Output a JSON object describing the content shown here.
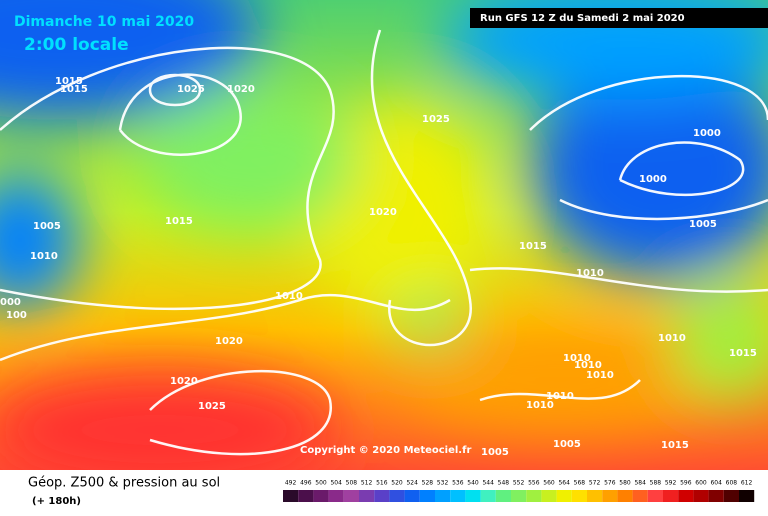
{
  "header": {
    "date": "Dimanche 10 mai 2020",
    "time": "2:00 locale",
    "run": "Run GFS 12 Z du Samedi 2 mai 2020"
  },
  "isobar_labels": [
    "1015",
    "1015",
    "1025",
    "1020",
    "1025",
    "1000",
    "1000",
    "1015",
    "1005",
    "1020",
    "1005",
    "1010",
    "1015",
    "1010",
    "1010",
    "000",
    "100",
    "1020",
    "1010",
    "1015",
    "1010",
    "1010",
    "1010",
    "1020",
    "1025",
    "1010",
    "1010",
    "1005",
    "1015",
    "1005"
  ],
  "copyright": "Copyright © 2020 Meteociel.fr",
  "footer": {
    "title": "Géop. Z500 & pression au sol",
    "lead": "(+ 180h)"
  },
  "legend": {
    "values": [
      492,
      496,
      500,
      504,
      508,
      512,
      516,
      520,
      524,
      528,
      532,
      536,
      540,
      544,
      548,
      552,
      556,
      560,
      564,
      568,
      572,
      576,
      580,
      584,
      588,
      592,
      596,
      600,
      604,
      608,
      612
    ],
    "colors": [
      "#2a0a2a",
      "#4b0f4b",
      "#6a1a6a",
      "#8a2a8a",
      "#a040a0",
      "#7a3cb0",
      "#5a40c8",
      "#3050e0",
      "#1060f0",
      "#0080ff",
      "#00a0ff",
      "#00c0ff",
      "#00e0f0",
      "#40f0c0",
      "#60f080",
      "#80f060",
      "#a0f040",
      "#c8f020",
      "#f0f000",
      "#ffe000",
      "#ffc000",
      "#ffa000",
      "#ff8000",
      "#ff6020",
      "#ff4040",
      "#f02020",
      "#d00000",
      "#b00000",
      "#800000",
      "#500000",
      "#100000"
    ]
  }
}
